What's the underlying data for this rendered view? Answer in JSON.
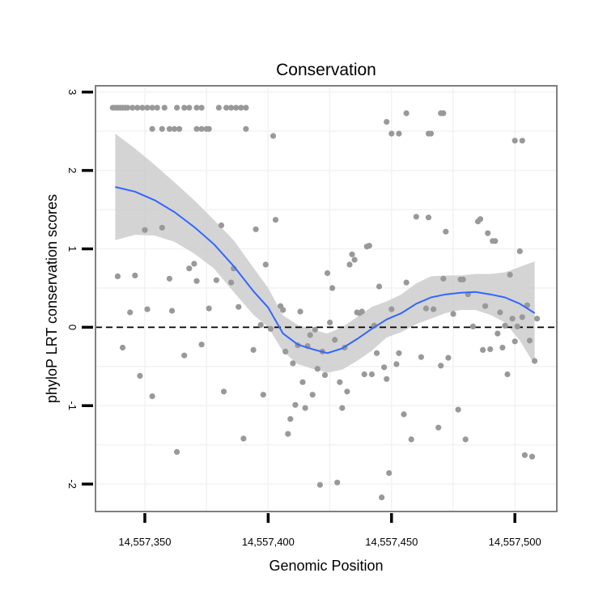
{
  "chart_data": {
    "type": "scatter",
    "title": "Conservation",
    "xlabel": "Genomic Position",
    "ylabel": "phyloP LRT conservation scores",
    "xlim": [
      14557330,
      14557517
    ],
    "ylim": [
      -2.35,
      3.08
    ],
    "x_ticks": [
      {
        "value": 14557350,
        "label": "14,557,350"
      },
      {
        "value": 14557400,
        "label": "14,557,400"
      },
      {
        "value": 14557450,
        "label": "14,557,450"
      },
      {
        "value": 14557500,
        "label": "14,557,500"
      }
    ],
    "y_ticks": [
      {
        "value": -2,
        "label": "-2"
      },
      {
        "value": -1,
        "label": "-1"
      },
      {
        "value": 0,
        "label": "0"
      },
      {
        "value": 1,
        "label": "1"
      },
      {
        "value": 2,
        "label": "2"
      },
      {
        "value": 3,
        "label": "3"
      }
    ],
    "reference_line": {
      "y": 0,
      "style": "dashed",
      "color": "#000000"
    },
    "colors": {
      "points": "#999999",
      "smooth_line": "#3366FF",
      "confidence_band": "#CCCCCC",
      "panel_border": "#7F7F7F",
      "grid": "#F2F2F2"
    },
    "points": [
      [
        14557337,
        2.8
      ],
      [
        14557338,
        2.8
      ],
      [
        14557339,
        2.8
      ],
      [
        14557340,
        2.8
      ],
      [
        14557341,
        2.8
      ],
      [
        14557342,
        2.8
      ],
      [
        14557343,
        2.8
      ],
      [
        14557345,
        2.8
      ],
      [
        14557347,
        2.8
      ],
      [
        14557349,
        2.8
      ],
      [
        14557351,
        2.8
      ],
      [
        14557353,
        2.8
      ],
      [
        14557355,
        2.8
      ],
      [
        14557358,
        2.8
      ],
      [
        14557363,
        2.8
      ],
      [
        14557366,
        2.8
      ],
      [
        14557368,
        2.8
      ],
      [
        14557371,
        2.8
      ],
      [
        14557373,
        2.8
      ],
      [
        14557380,
        2.8
      ],
      [
        14557383,
        2.8
      ],
      [
        14557385,
        2.8
      ],
      [
        14557387,
        2.8
      ],
      [
        14557389,
        2.8
      ],
      [
        14557391,
        2.8
      ],
      [
        14557353,
        2.53
      ],
      [
        14557357,
        2.53
      ],
      [
        14557360,
        2.53
      ],
      [
        14557362,
        2.53
      ],
      [
        14557364,
        2.53
      ],
      [
        14557371,
        2.53
      ],
      [
        14557373,
        2.53
      ],
      [
        14557375,
        2.53
      ],
      [
        14557376,
        2.53
      ],
      [
        14557391,
        2.53
      ],
      [
        14557402,
        2.44
      ],
      [
        14557448,
        2.62
      ],
      [
        14557450,
        2.47
      ],
      [
        14557453,
        2.47
      ],
      [
        14557456,
        2.73
      ],
      [
        14557465,
        2.47
      ],
      [
        14557466,
        2.47
      ],
      [
        14557470,
        2.73
      ],
      [
        14557471,
        2.73
      ],
      [
        14557500,
        2.38
      ],
      [
        14557503,
        2.38
      ],
      [
        14557339,
        0.65
      ],
      [
        14557341,
        -0.26
      ],
      [
        14557344,
        0.19
      ],
      [
        14557346,
        0.66
      ],
      [
        14557348,
        -0.62
      ],
      [
        14557350,
        1.24
      ],
      [
        14557351,
        0.23
      ],
      [
        14557353,
        -0.88
      ],
      [
        14557357,
        1.27
      ],
      [
        14557360,
        0.62
      ],
      [
        14557361,
        0.21
      ],
      [
        14557363,
        -1.59
      ],
      [
        14557366,
        -0.36
      ],
      [
        14557368,
        0.75
      ],
      [
        14557370,
        0.81
      ],
      [
        14557371,
        0.59
      ],
      [
        14557373,
        -0.22
      ],
      [
        14557376,
        0.24
      ],
      [
        14557379,
        0.6
      ],
      [
        14557381,
        1.3
      ],
      [
        14557382,
        -0.82
      ],
      [
        14557385,
        0.57
      ],
      [
        14557386,
        0.75
      ],
      [
        14557388,
        0.26
      ],
      [
        14557390,
        -1.42
      ],
      [
        14557394,
        -0.29
      ],
      [
        14557395,
        1.25
      ],
      [
        14557397,
        0.03
      ],
      [
        14557398,
        -0.86
      ],
      [
        14557399,
        0.8
      ],
      [
        14557401,
        -0.02
      ],
      [
        14557403,
        1.37
      ],
      [
        14557405,
        0.27
      ],
      [
        14557406,
        0.22
      ],
      [
        14557407,
        -0.31
      ],
      [
        14557408,
        -1.36
      ],
      [
        14557409,
        -1.17
      ],
      [
        14557410,
        -0.46
      ],
      [
        14557411,
        -0.99
      ],
      [
        14557412,
        -0.23
      ],
      [
        14557413,
        0.2
      ],
      [
        14557414,
        -0.7
      ],
      [
        14557415,
        -1.03
      ],
      [
        14557416,
        -0.24
      ],
      [
        14557417,
        -0.1
      ],
      [
        14557418,
        -0.86
      ],
      [
        14557419,
        -0.03
      ],
      [
        14557420,
        -0.53
      ],
      [
        14557421,
        -2.01
      ],
      [
        14557422,
        -0.31
      ],
      [
        14557423,
        -0.61
      ],
      [
        14557424,
        0.69
      ],
      [
        14557425,
        0.06
      ],
      [
        14557426,
        0.5
      ],
      [
        14557427,
        -0.16
      ],
      [
        14557428,
        -1.98
      ],
      [
        14557429,
        -0.7
      ],
      [
        14557430,
        -1.03
      ],
      [
        14557431,
        -0.26
      ],
      [
        14557432,
        -0.82
      ],
      [
        14557433,
        0.8
      ],
      [
        14557434,
        0.93
      ],
      [
        14557435,
        0.86
      ],
      [
        14557436,
        0.19
      ],
      [
        14557437,
        0.18
      ],
      [
        14557438,
        0.2
      ],
      [
        14557439,
        -0.6
      ],
      [
        14557440,
        1.03
      ],
      [
        14557441,
        1.04
      ],
      [
        14557442,
        -0.6
      ],
      [
        14557443,
        0.02
      ],
      [
        14557444,
        -0.33
      ],
      [
        14557445,
        0.52
      ],
      [
        14557446,
        -2.17
      ],
      [
        14557447,
        -0.51
      ],
      [
        14557448,
        -0.66
      ],
      [
        14557449,
        -1.86
      ],
      [
        14557450,
        0.23
      ],
      [
        14557452,
        -0.47
      ],
      [
        14557453,
        -0.33
      ],
      [
        14557455,
        -1.11
      ],
      [
        14557456,
        0.57
      ],
      [
        14557458,
        -1.43
      ],
      [
        14557460,
        1.41
      ],
      [
        14557462,
        -0.38
      ],
      [
        14557464,
        0.24
      ],
      [
        14557465,
        1.4
      ],
      [
        14557467,
        0.23
      ],
      [
        14557469,
        -1.28
      ],
      [
        14557470,
        -0.49
      ],
      [
        14557471,
        0.62
      ],
      [
        14557472,
        1.22
      ],
      [
        14557473,
        -0.39
      ],
      [
        14557475,
        0.17
      ],
      [
        14557477,
        -1.05
      ],
      [
        14557478,
        0.61
      ],
      [
        14557479,
        0.61
      ],
      [
        14557480,
        -1.43
      ],
      [
        14557481,
        0.42
      ],
      [
        14557483,
        0.01
      ],
      [
        14557485,
        1.35
      ],
      [
        14557486,
        1.38
      ],
      [
        14557487,
        -0.29
      ],
      [
        14557488,
        0.27
      ],
      [
        14557489,
        1.2
      ],
      [
        14557490,
        -0.28
      ],
      [
        14557491,
        1.1
      ],
      [
        14557492,
        1.1
      ],
      [
        14557493,
        -0.08
      ],
      [
        14557494,
        0.19
      ],
      [
        14557495,
        -0.26
      ],
      [
        14557496,
        0.02
      ],
      [
        14557497,
        -0.6
      ],
      [
        14557498,
        0.67
      ],
      [
        14557499,
        0.11
      ],
      [
        14557500,
        -0.18
      ],
      [
        14557501,
        0.01
      ],
      [
        14557502,
        0.97
      ],
      [
        14557503,
        0.13
      ],
      [
        14557504,
        -1.63
      ],
      [
        14557505,
        0.28
      ],
      [
        14557506,
        -0.17
      ],
      [
        14557507,
        -1.65
      ],
      [
        14557508,
        -0.43
      ],
      [
        14557509,
        0.11
      ]
    ],
    "smooth": {
      "x": [
        14557338,
        14557346,
        14557354,
        14557362,
        14557370,
        14557378,
        14557386,
        14557394,
        14557400,
        14557406,
        14557412,
        14557418,
        14557424,
        14557430,
        14557436,
        14557442,
        14557448,
        14557454,
        14557460,
        14557466,
        14557472,
        14557478,
        14557484,
        14557490,
        14557496,
        14557502,
        14557508
      ],
      "y": [
        1.79,
        1.73,
        1.62,
        1.47,
        1.28,
        1.06,
        0.78,
        0.46,
        0.25,
        -0.08,
        -0.22,
        -0.28,
        -0.33,
        -0.27,
        -0.15,
        -0.02,
        0.1,
        0.18,
        0.3,
        0.38,
        0.42,
        0.44,
        0.45,
        0.42,
        0.38,
        0.3,
        0.18
      ],
      "upper": [
        2.47,
        2.28,
        2.07,
        1.85,
        1.62,
        1.37,
        1.11,
        0.76,
        0.5,
        0.15,
        0.03,
        -0.03,
        -0.08,
        0.0,
        0.13,
        0.26,
        0.33,
        0.42,
        0.56,
        0.65,
        0.66,
        0.66,
        0.68,
        0.68,
        0.7,
        0.77,
        0.84
      ],
      "lower": [
        1.11,
        1.18,
        1.17,
        1.09,
        0.94,
        0.75,
        0.45,
        0.16,
        0.0,
        -0.31,
        -0.47,
        -0.53,
        -0.58,
        -0.54,
        -0.43,
        -0.3,
        -0.13,
        -0.06,
        0.04,
        0.11,
        0.18,
        0.22,
        0.22,
        0.16,
        0.06,
        -0.17,
        -0.48
      ]
    }
  }
}
